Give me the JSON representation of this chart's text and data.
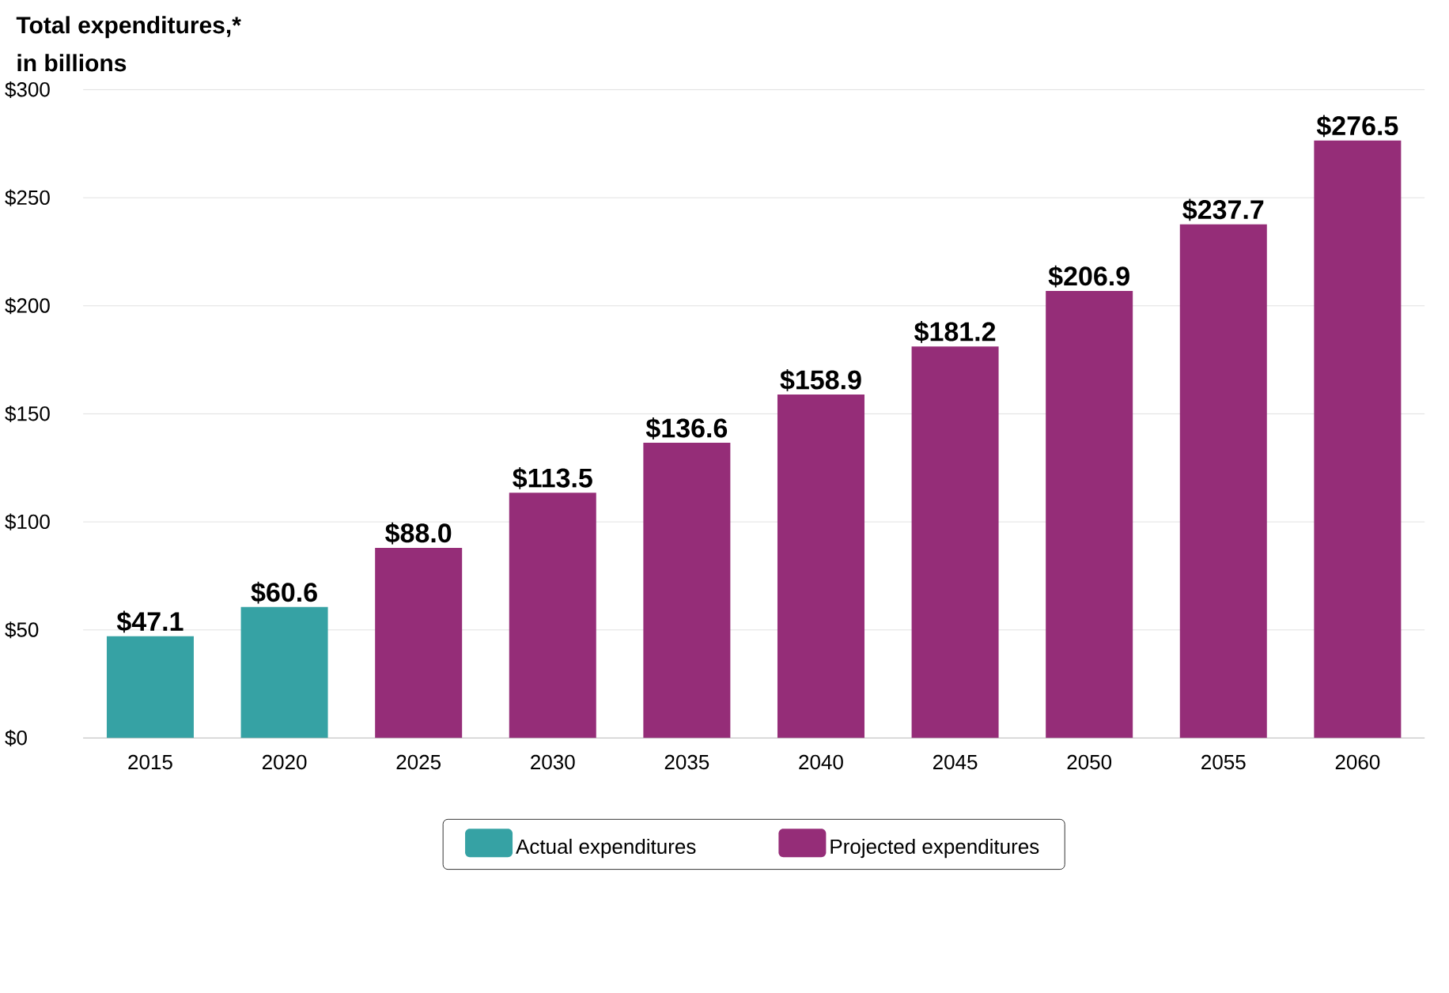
{
  "chart_data": {
    "type": "bar",
    "title": "Total expenditures,*",
    "subtitle": "in billions",
    "categories": [
      "2015",
      "2020",
      "2025",
      "2030",
      "2035",
      "2040",
      "2045",
      "2050",
      "2055",
      "2060"
    ],
    "series": [
      {
        "name": "Actual expenditures",
        "color": "#36a2a4",
        "values": [
          47.1,
          60.6,
          null,
          null,
          null,
          null,
          null,
          null,
          null,
          null
        ],
        "value_labels": [
          "$47.1",
          "$60.6",
          null,
          null,
          null,
          null,
          null,
          null,
          null,
          null
        ]
      },
      {
        "name": "Projected expenditures",
        "color": "#952d78",
        "values": [
          null,
          null,
          88.0,
          113.5,
          136.6,
          158.9,
          181.2,
          206.9,
          237.7,
          276.5
        ],
        "value_labels": [
          null,
          null,
          "$88.0",
          "$113.5",
          "$136.6",
          "$158.9",
          "$181.2",
          "$206.9",
          "$237.7",
          "$276.5"
        ]
      }
    ],
    "ylim": [
      0,
      300
    ],
    "yticks": [
      {
        "value": 0,
        "label": "$0"
      },
      {
        "value": 50,
        "label": "$50"
      },
      {
        "value": 100,
        "label": "$100"
      },
      {
        "value": 150,
        "label": "$150"
      },
      {
        "value": 200,
        "label": "$200"
      },
      {
        "value": 250,
        "label": "$250"
      },
      {
        "value": 300,
        "label": "$300"
      }
    ],
    "grid": "y",
    "legend": "bottom"
  }
}
